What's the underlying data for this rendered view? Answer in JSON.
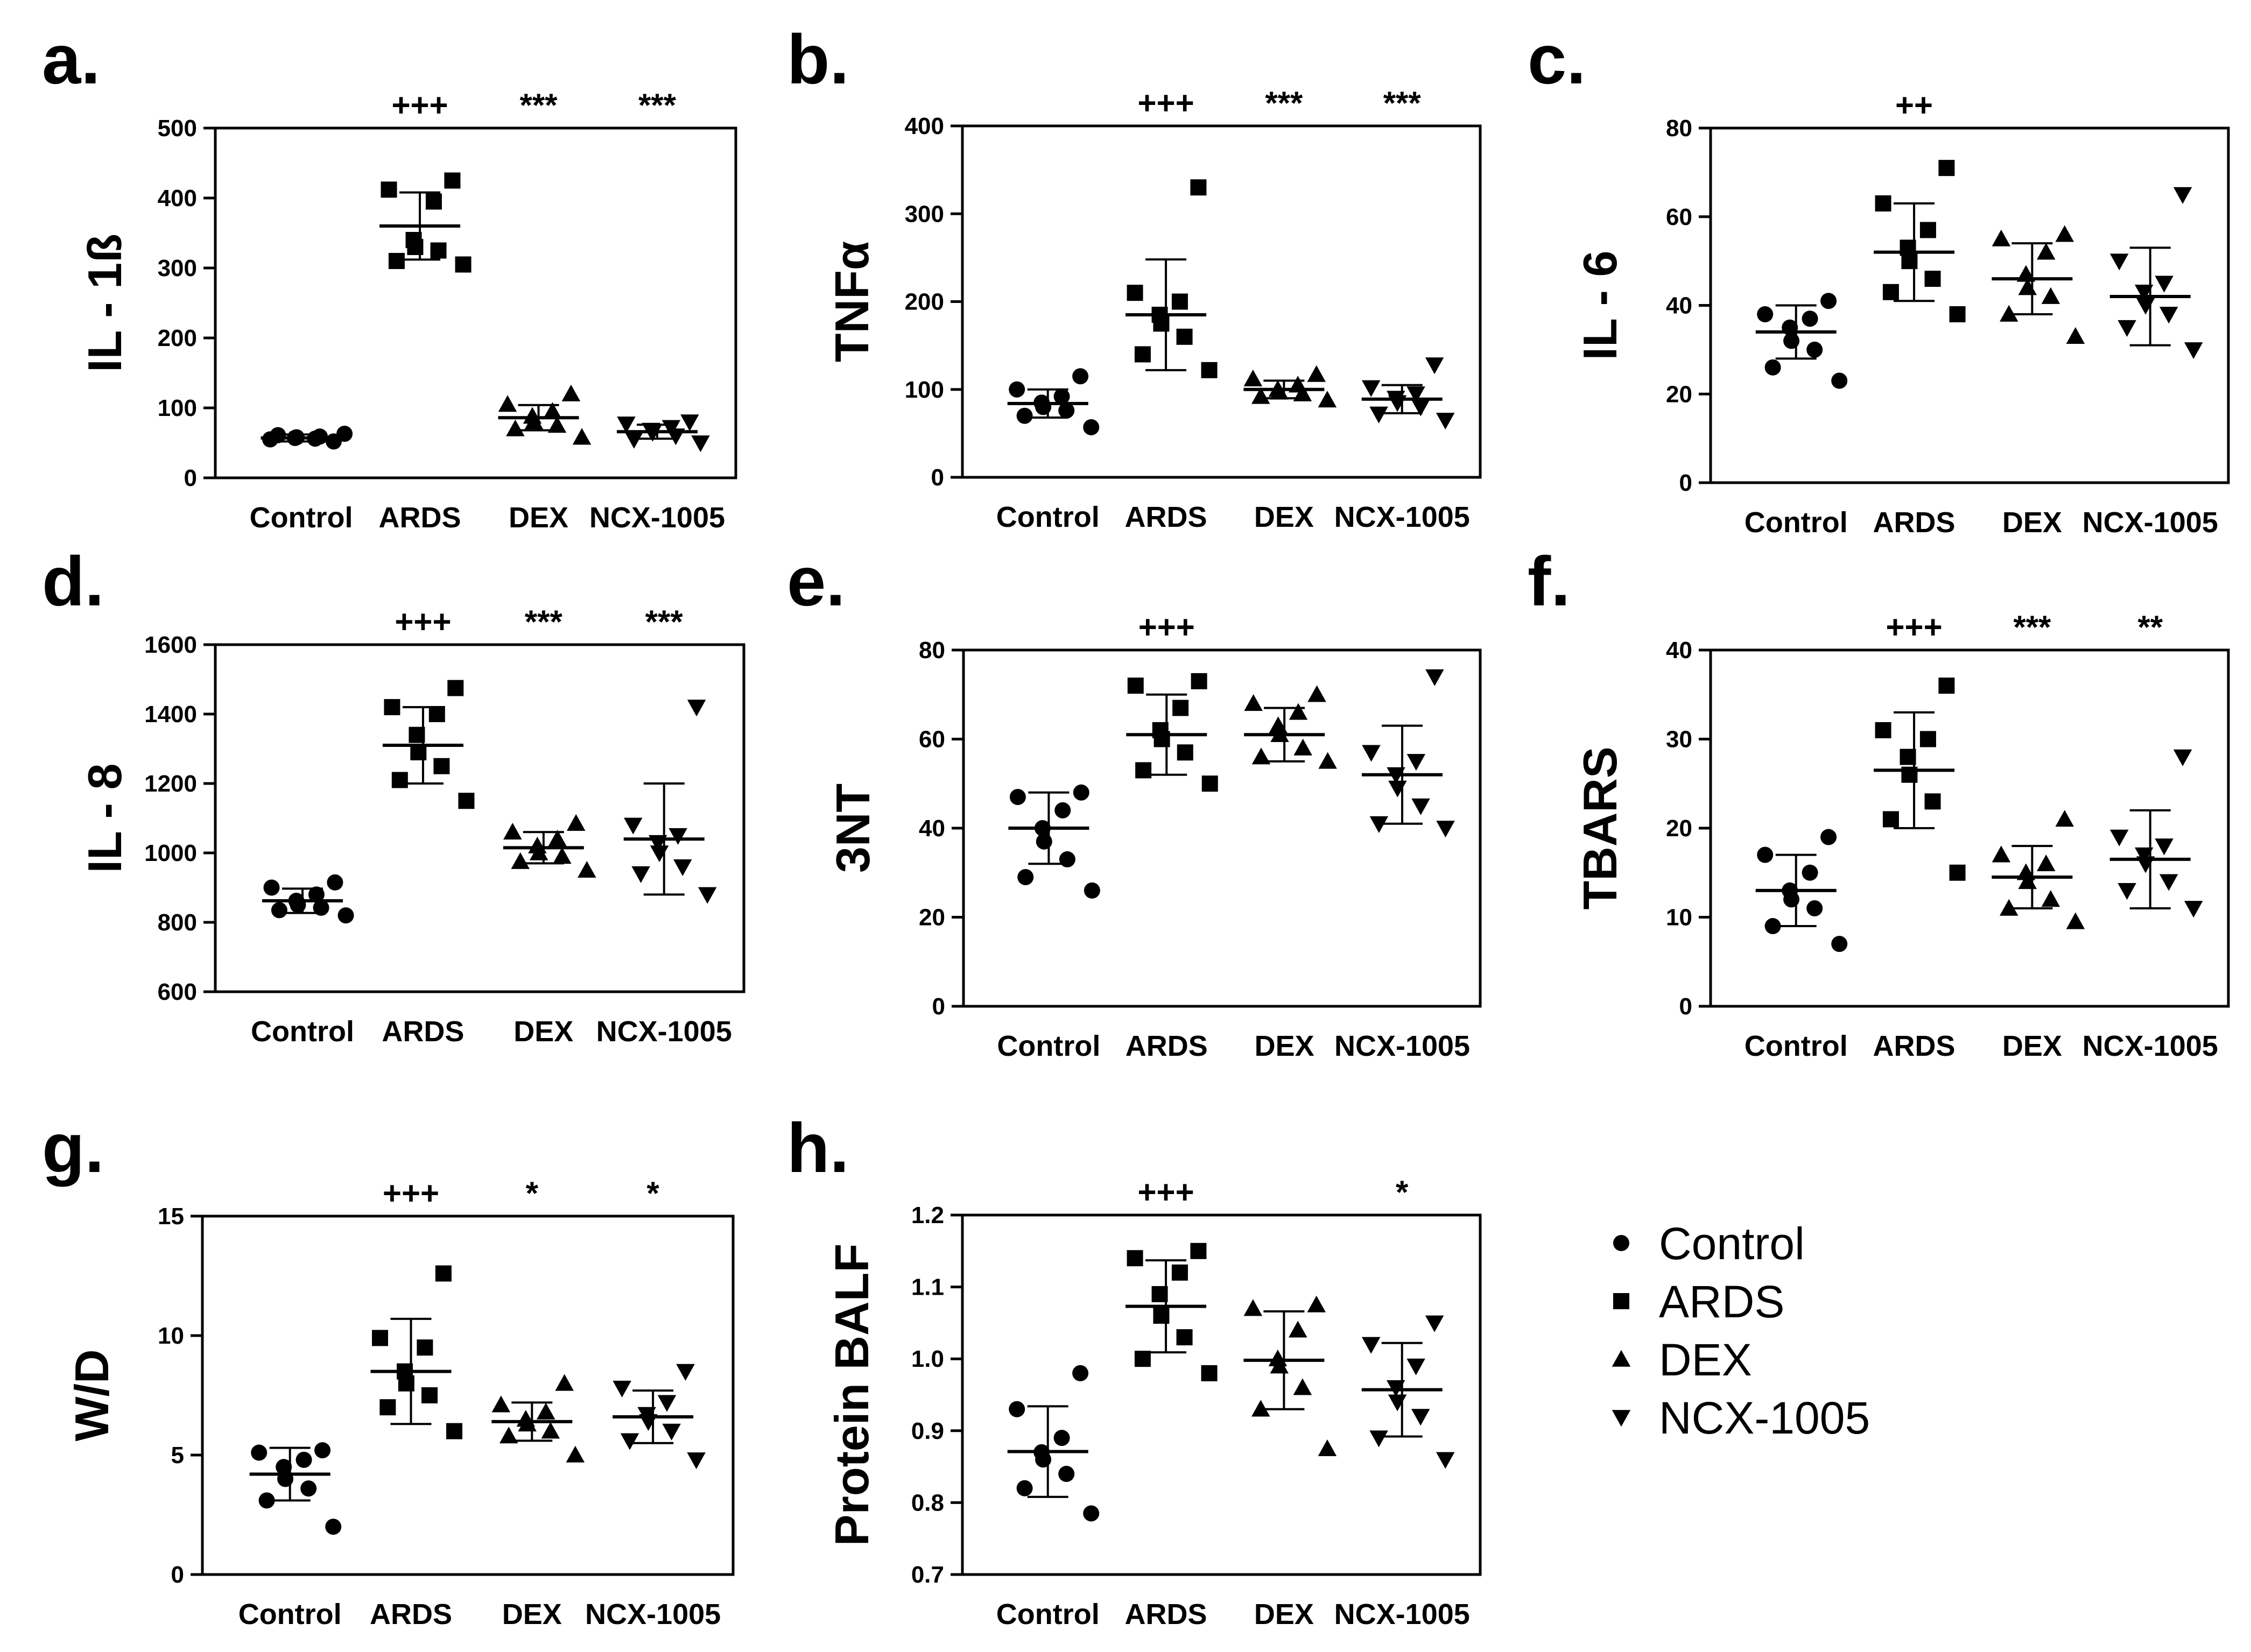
{
  "figure": {
    "legend": [
      {
        "label": "Control",
        "marker": "circle"
      },
      {
        "label": "ARDS",
        "marker": "square"
      },
      {
        "label": "DEX",
        "marker": "triangle-up"
      },
      {
        "label": "NCX-1005",
        "marker": "triangle-down"
      }
    ]
  },
  "chart_data": [
    {
      "panel": "a.",
      "type": "scatter",
      "ylabel": "IL - 1ß",
      "ylim": [
        0,
        500
      ],
      "yticks": [
        0,
        100,
        200,
        300,
        400,
        500
      ],
      "categories": [
        "Control",
        "ARDS",
        "DEX",
        "NCX-1005"
      ],
      "significance": [
        "",
        "+++",
        "***",
        "***"
      ],
      "groups": [
        {
          "name": "Control",
          "marker": "circle",
          "mean": 57,
          "sd": 5,
          "values": [
            52,
            55,
            56,
            57,
            58,
            59,
            61,
            63
          ]
        },
        {
          "name": "ARDS",
          "marker": "square",
          "mean": 360,
          "sd": 48,
          "values": [
            425,
            412,
            395,
            340,
            330,
            325,
            310,
            305
          ]
        },
        {
          "name": "DEX",
          "marker": "triangle-up",
          "mean": 86,
          "sd": 18,
          "values": [
            120,
            105,
            95,
            88,
            80,
            75,
            70,
            58
          ]
        },
        {
          "name": "NCX-1005",
          "marker": "triangle-down",
          "mean": 66,
          "sd": 10,
          "values": [
            80,
            77,
            72,
            68,
            65,
            60,
            55,
            50
          ]
        }
      ]
    },
    {
      "panel": "b.",
      "type": "scatter",
      "ylabel": "TNFα",
      "ylim": [
        0,
        400
      ],
      "yticks": [
        0,
        100,
        200,
        300,
        400
      ],
      "categories": [
        "Control",
        "ARDS",
        "DEX",
        "NCX-1005"
      ],
      "significance": [
        "",
        "+++",
        "***",
        "***"
      ],
      "groups": [
        {
          "name": "Control",
          "marker": "circle",
          "mean": 84,
          "sd": 16,
          "values": [
            115,
            100,
            92,
            85,
            80,
            76,
            70,
            57
          ]
        },
        {
          "name": "ARDS",
          "marker": "square",
          "mean": 185,
          "sd": 63,
          "values": [
            330,
            210,
            200,
            185,
            175,
            160,
            140,
            122
          ]
        },
        {
          "name": "DEX",
          "marker": "triangle-up",
          "mean": 100,
          "sd": 10,
          "values": [
            117,
            112,
            105,
            100,
            97,
            95,
            92,
            88
          ]
        },
        {
          "name": "NCX-1005",
          "marker": "triangle-down",
          "mean": 89,
          "sd": 16,
          "values": [
            128,
            102,
            95,
            90,
            85,
            80,
            72,
            65
          ]
        }
      ]
    },
    {
      "panel": "c.",
      "type": "scatter",
      "ylabel": "IL - 6",
      "ylim": [
        0,
        80
      ],
      "yticks": [
        0,
        20,
        40,
        60,
        80
      ],
      "categories": [
        "Control",
        "ARDS",
        "DEX",
        "NCX-1005"
      ],
      "significance": [
        "",
        "++",
        "",
        ""
      ],
      "groups": [
        {
          "name": "Control",
          "marker": "circle",
          "mean": 34,
          "sd": 6,
          "values": [
            41,
            38,
            37,
            35,
            32,
            30,
            26,
            23
          ]
        },
        {
          "name": "ARDS",
          "marker": "square",
          "mean": 52,
          "sd": 11,
          "values": [
            71,
            63,
            57,
            53,
            50,
            46,
            43,
            38
          ]
        },
        {
          "name": "DEX",
          "marker": "triangle-up",
          "mean": 46,
          "sd": 8,
          "values": [
            56,
            55,
            52,
            47,
            44,
            42,
            38,
            33
          ]
        },
        {
          "name": "NCX-1005",
          "marker": "triangle-down",
          "mean": 42,
          "sd": 11,
          "values": [
            65,
            50,
            45,
            43,
            40,
            38,
            35,
            30
          ]
        }
      ]
    },
    {
      "panel": "d.",
      "type": "scatter",
      "ylabel": "IL - 8",
      "ylim": [
        600,
        1600
      ],
      "yticks": [
        600,
        800,
        1000,
        1200,
        1400,
        1600
      ],
      "categories": [
        "Control",
        "ARDS",
        "DEX",
        "NCX-1005"
      ],
      "significance": [
        "",
        "+++",
        "***",
        "***"
      ],
      "groups": [
        {
          "name": "Control",
          "marker": "circle",
          "mean": 862,
          "sd": 35,
          "values": [
            915,
            900,
            880,
            862,
            850,
            842,
            835,
            820
          ]
        },
        {
          "name": "ARDS",
          "marker": "square",
          "mean": 1310,
          "sd": 110,
          "values": [
            1475,
            1420,
            1400,
            1340,
            1290,
            1250,
            1210,
            1150
          ]
        },
        {
          "name": "DEX",
          "marker": "triangle-up",
          "mean": 1015,
          "sd": 45,
          "values": [
            1085,
            1060,
            1040,
            1020,
            1000,
            990,
            975,
            950
          ]
        },
        {
          "name": "NCX-1005",
          "marker": "triangle-down",
          "mean": 1040,
          "sd": 160,
          "values": [
            1420,
            1080,
            1050,
            1030,
            1000,
            960,
            940,
            880
          ]
        }
      ]
    },
    {
      "panel": "e.",
      "type": "scatter",
      "ylabel": "3NT",
      "ylim": [
        0,
        80
      ],
      "yticks": [
        0,
        20,
        40,
        60,
        80
      ],
      "categories": [
        "Control",
        "ARDS",
        "DEX",
        "NCX-1005"
      ],
      "significance": [
        "",
        "+++",
        "",
        ""
      ],
      "groups": [
        {
          "name": "Control",
          "marker": "circle",
          "mean": 40,
          "sd": 8,
          "values": [
            48,
            47,
            44,
            40,
            37,
            33,
            29,
            26
          ]
        },
        {
          "name": "ARDS",
          "marker": "square",
          "mean": 61,
          "sd": 9,
          "values": [
            73,
            72,
            67,
            62,
            60,
            57,
            53,
            50
          ]
        },
        {
          "name": "DEX",
          "marker": "triangle-up",
          "mean": 61,
          "sd": 6,
          "values": [
            70,
            68,
            66,
            63,
            61,
            58,
            56,
            55
          ]
        },
        {
          "name": "NCX-1005",
          "marker": "triangle-down",
          "mean": 52,
          "sd": 11,
          "values": [
            74,
            57,
            55,
            52,
            49,
            45,
            41,
            40
          ]
        }
      ]
    },
    {
      "panel": "f.",
      "type": "scatter",
      "ylabel": "TBARS",
      "ylim": [
        0,
        40
      ],
      "yticks": [
        0,
        10,
        20,
        30,
        40
      ],
      "categories": [
        "Control",
        "ARDS",
        "DEX",
        "NCX-1005"
      ],
      "significance": [
        "",
        "+++",
        "***",
        "**"
      ],
      "groups": [
        {
          "name": "Control",
          "marker": "circle",
          "mean": 13,
          "sd": 4,
          "values": [
            19,
            17,
            15,
            13,
            12,
            11,
            9,
            7
          ]
        },
        {
          "name": "ARDS",
          "marker": "square",
          "mean": 26.5,
          "sd": 6.5,
          "values": [
            36,
            31,
            30,
            28,
            26,
            23,
            21,
            15
          ]
        },
        {
          "name": "DEX",
          "marker": "triangle-up",
          "mean": 14.5,
          "sd": 3.5,
          "values": [
            21,
            17,
            16,
            15,
            14,
            12,
            11,
            9.5
          ]
        },
        {
          "name": "NCX-1005",
          "marker": "triangle-down",
          "mean": 16.5,
          "sd": 5.5,
          "values": [
            28,
            19,
            18,
            17,
            16,
            14,
            13,
            11
          ]
        }
      ]
    },
    {
      "panel": "g.",
      "type": "scatter",
      "ylabel": "W/D",
      "ylim": [
        0,
        15
      ],
      "yticks": [
        0,
        5,
        10,
        15
      ],
      "categories": [
        "Control",
        "ARDS",
        "DEX",
        "NCX-1005"
      ],
      "significance": [
        "",
        "+++",
        "*",
        "*"
      ],
      "groups": [
        {
          "name": "Control",
          "marker": "circle",
          "mean": 4.2,
          "sd": 1.1,
          "values": [
            5.2,
            5.1,
            4.8,
            4.5,
            4.0,
            3.6,
            3.1,
            2.0
          ]
        },
        {
          "name": "ARDS",
          "marker": "square",
          "mean": 8.5,
          "sd": 2.2,
          "values": [
            12.6,
            9.9,
            9.5,
            8.5,
            8.0,
            7.5,
            7.0,
            6.0
          ]
        },
        {
          "name": "DEX",
          "marker": "triangle-up",
          "mean": 6.4,
          "sd": 0.8,
          "values": [
            8.0,
            7.1,
            6.8,
            6.5,
            6.3,
            6.0,
            5.8,
            5.0
          ]
        },
        {
          "name": "NCX-1005",
          "marker": "triangle-down",
          "mean": 6.6,
          "sd": 1.1,
          "values": [
            8.5,
            7.8,
            7.2,
            6.7,
            6.4,
            6.0,
            5.6,
            4.8
          ]
        }
      ]
    },
    {
      "panel": "h.",
      "type": "scatter",
      "ylabel": "Protein BALF",
      "ylim": [
        0.7,
        1.2
      ],
      "yticks": [
        0.7,
        0.8,
        0.9,
        1.0,
        1.1,
        1.2
      ],
      "categories": [
        "Control",
        "ARDS",
        "DEX",
        "NCX-1005"
      ],
      "significance": [
        "",
        "+++",
        "",
        "*"
      ],
      "groups": [
        {
          "name": "Control",
          "marker": "circle",
          "mean": 0.871,
          "sd": 0.063,
          "values": [
            0.98,
            0.93,
            0.89,
            0.87,
            0.86,
            0.84,
            0.82,
            0.785
          ]
        },
        {
          "name": "ARDS",
          "marker": "square",
          "mean": 1.073,
          "sd": 0.064,
          "values": [
            1.15,
            1.14,
            1.12,
            1.09,
            1.06,
            1.03,
            1.0,
            0.98
          ]
        },
        {
          "name": "DEX",
          "marker": "triangle-up",
          "mean": 0.998,
          "sd": 0.068,
          "values": [
            1.075,
            1.07,
            1.04,
            1.0,
            0.99,
            0.96,
            0.93,
            0.875
          ]
        },
        {
          "name": "NCX-1005",
          "marker": "triangle-down",
          "mean": 0.957,
          "sd": 0.065,
          "values": [
            1.05,
            1.02,
            0.99,
            0.96,
            0.94,
            0.92,
            0.89,
            0.86
          ]
        }
      ]
    }
  ]
}
